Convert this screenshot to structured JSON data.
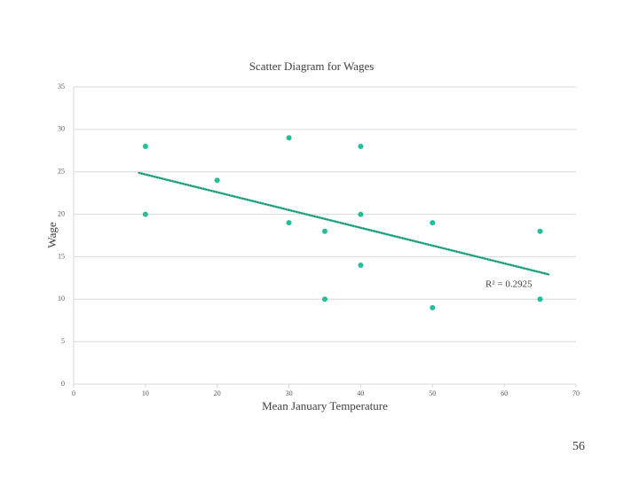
{
  "chart_data": {
    "type": "scatter",
    "title": "Scatter Diagram for Wages",
    "x_label": "Mean January Temperature",
    "y_label": "Wage",
    "series": [
      {
        "name": "Wage",
        "color": "#1fbf9c",
        "x": [
          10,
          10,
          20,
          30,
          30,
          35,
          35,
          40,
          40,
          40,
          50,
          50,
          65,
          65
        ],
        "values": [
          28,
          20,
          24,
          29,
          19,
          18,
          10,
          28,
          20,
          14,
          19,
          9,
          18,
          10
        ]
      }
    ],
    "trendline": {
      "x": [
        9,
        66.3
      ],
      "values": [
        24.9,
        12.9
      ],
      "color": "#1fbf9c",
      "annotation": "R² = 0.2925"
    },
    "xlim": [
      0,
      70
    ],
    "xticks": [
      0,
      10,
      20,
      30,
      40,
      50,
      60,
      70
    ],
    "ylim": [
      0,
      35
    ],
    "yticks": [
      0,
      5,
      10,
      15,
      20,
      25,
      30,
      35
    ],
    "grid": true
  },
  "page_number": "56"
}
